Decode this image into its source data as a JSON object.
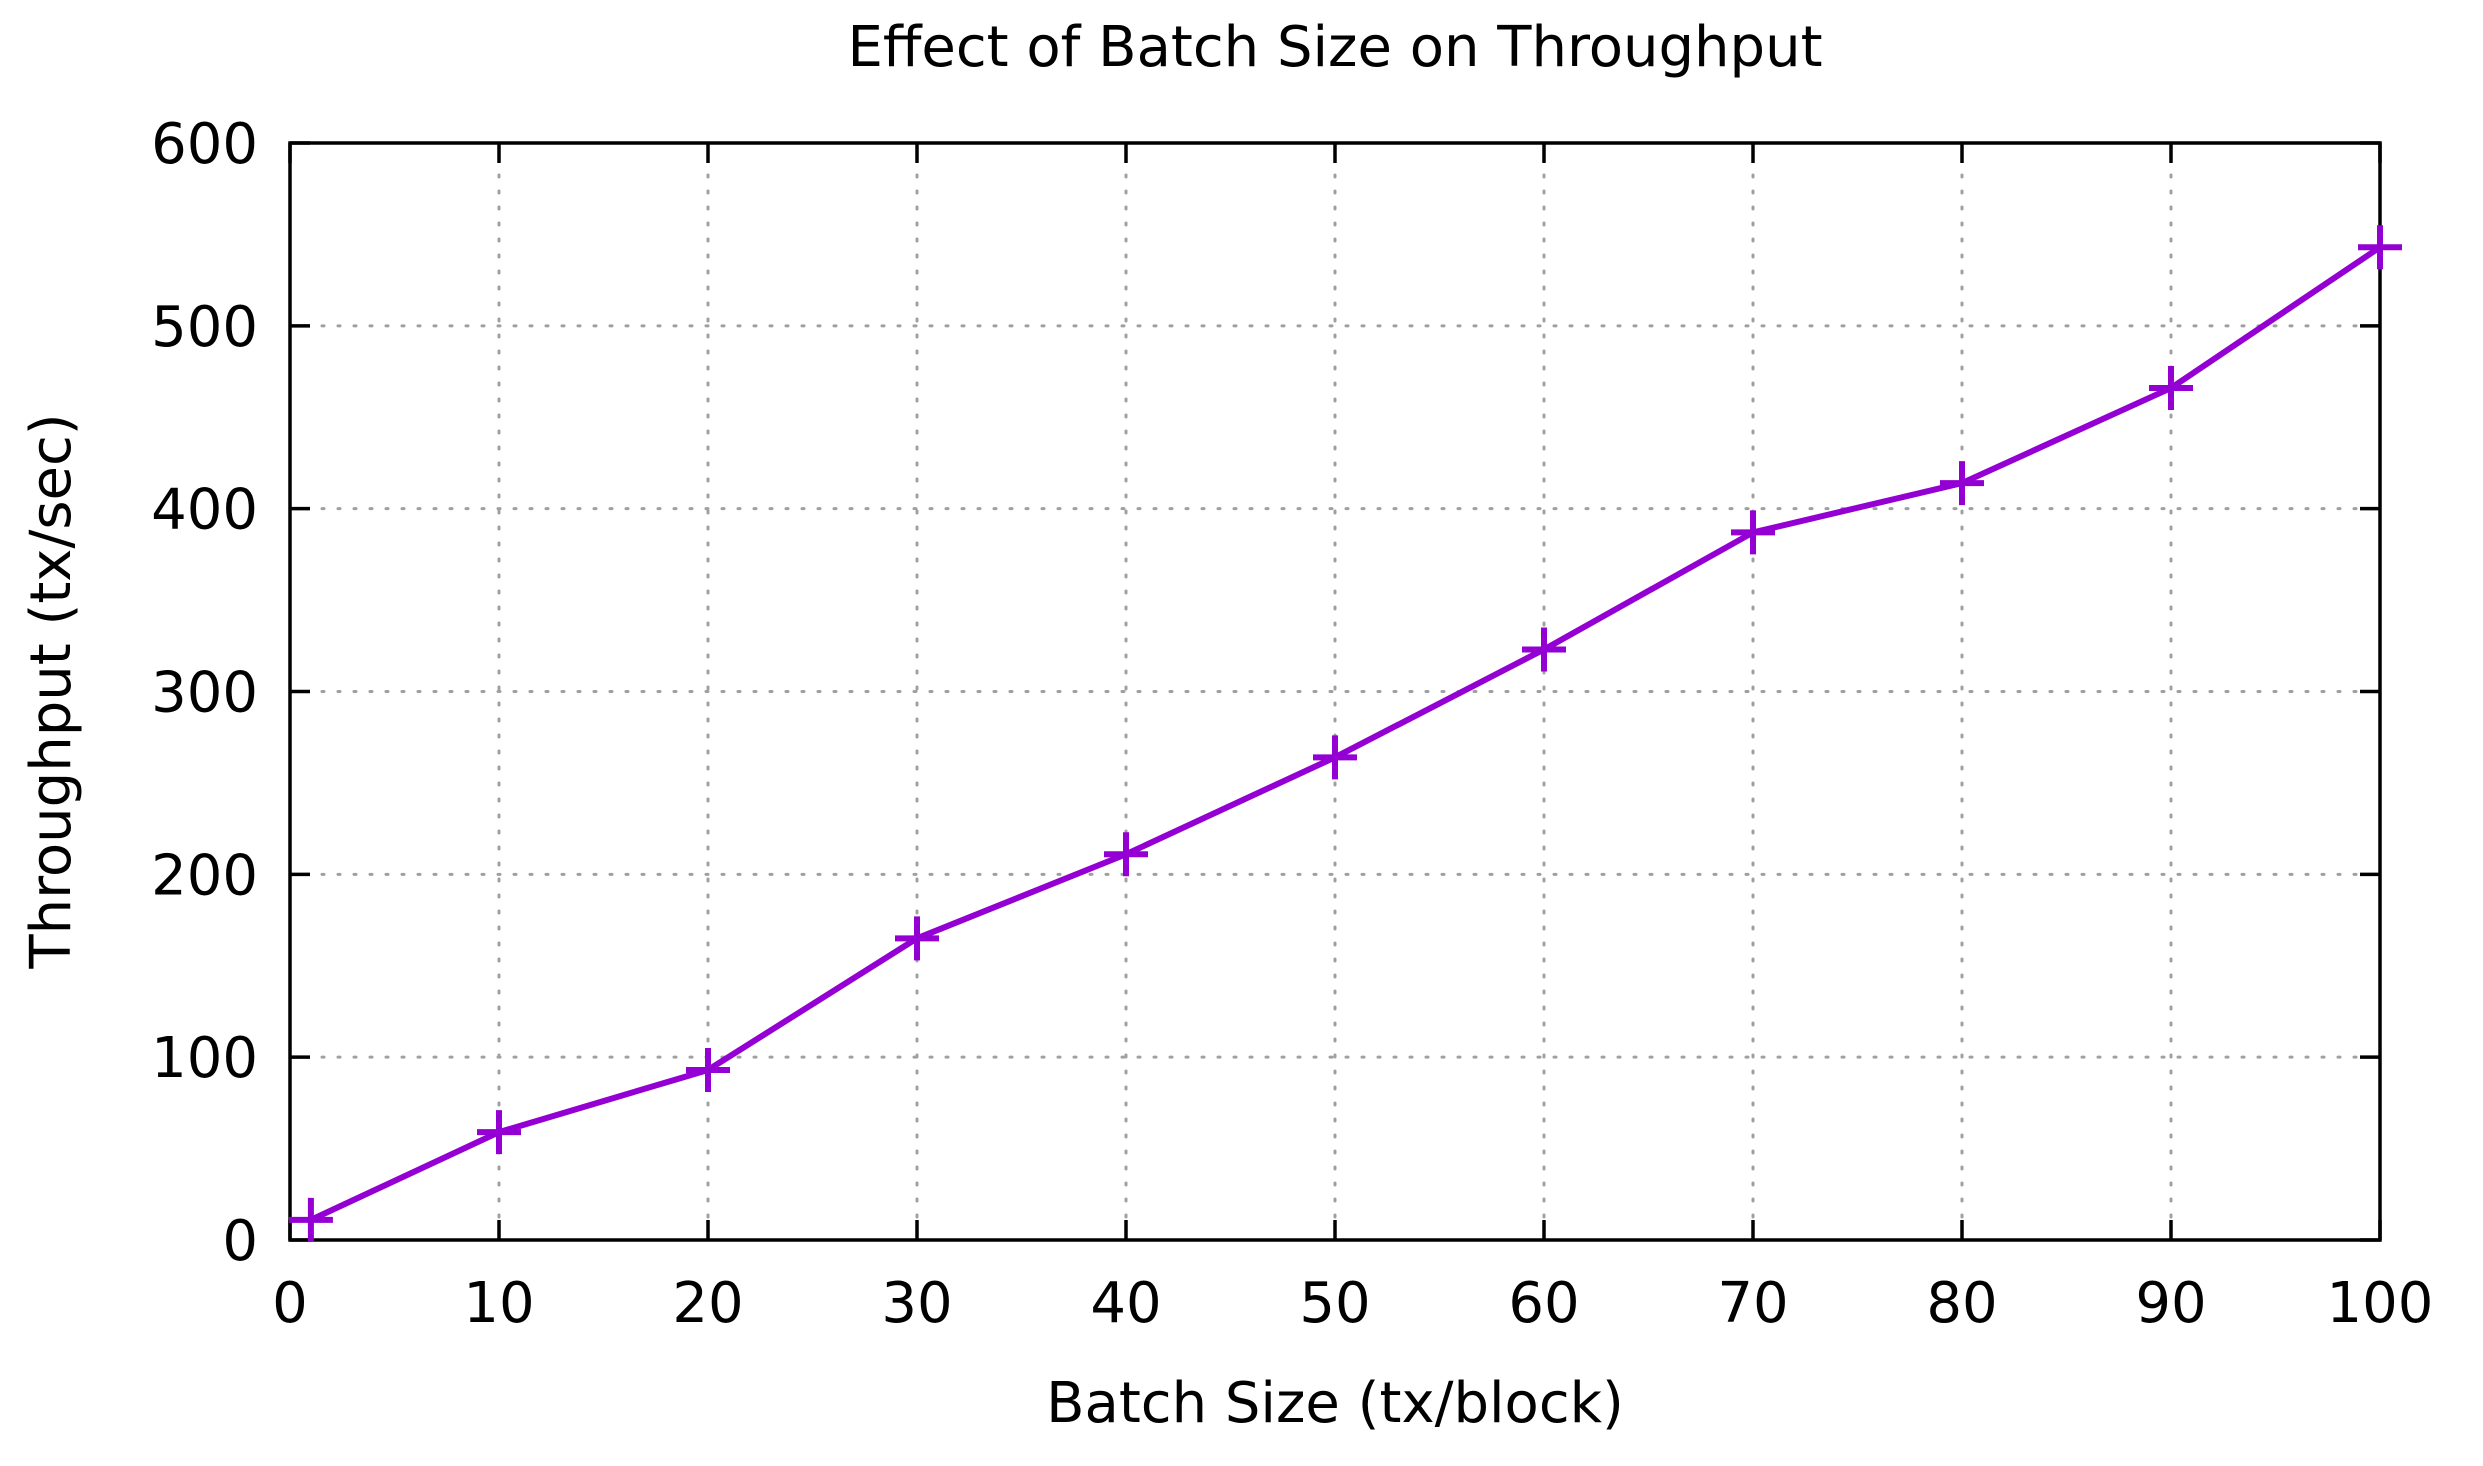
{
  "chart_data": {
    "type": "line",
    "title": "Effect of Batch Size on Throughput",
    "xlabel": "Batch Size (tx/block)",
    "ylabel": "Throughput (tx/sec)",
    "xlim": [
      0,
      100
    ],
    "ylim": [
      0,
      600
    ],
    "x_ticks": [
      "0",
      "10",
      "20",
      "30",
      "40",
      "50",
      "60",
      "70",
      "80",
      "90",
      "100"
    ],
    "y_ticks": [
      "0",
      "100",
      "200",
      "300",
      "400",
      "500",
      "600"
    ],
    "grid": true,
    "legend": "none",
    "series": [
      {
        "name": "Throughput",
        "color": "#9400D3",
        "marker": "plus",
        "x": [
          1,
          10,
          20,
          30,
          40,
          50,
          60,
          70,
          80,
          90,
          100
        ],
        "values": [
          11,
          59,
          93,
          165,
          211,
          264,
          323,
          387,
          414,
          466,
          543
        ]
      }
    ]
  }
}
